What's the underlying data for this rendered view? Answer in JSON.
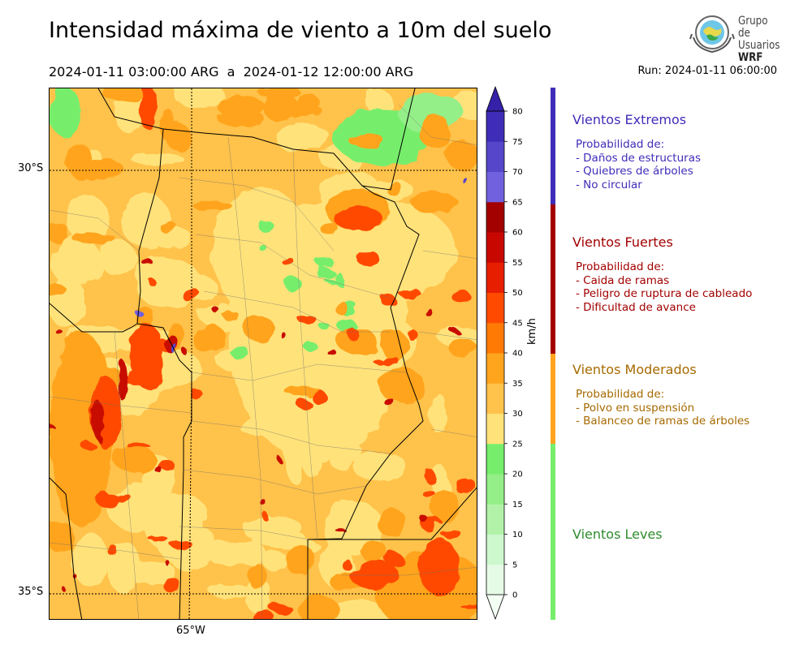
{
  "title": "Intensidad máxima de viento a 10m del suelo",
  "period": "2024-01-11 03:00:00 ARG  a  2024-01-12 12:00:00 ARG",
  "run": "Run: 2024-01-11 06:00:00",
  "logo": {
    "line1": "Grupo de",
    "line2": "Usuarios",
    "line3": "WRF"
  },
  "axes": {
    "lat_labels": [
      "30°S",
      "35°S"
    ],
    "lon_labels": [
      "65°W"
    ]
  },
  "colorbar": {
    "unit": "km/h",
    "ticks": [
      "0",
      "5",
      "10",
      "15",
      "20",
      "25",
      "30",
      "35",
      "40",
      "45",
      "50",
      "55",
      "60",
      "65",
      "70",
      "75",
      "80"
    ],
    "colors": [
      "#e6fbe6",
      "#cdf7cd",
      "#b1f2a8",
      "#94ef88",
      "#76ee6c",
      "#ffe27a",
      "#ffc24a",
      "#ffa41d",
      "#ff7a05",
      "#ff4a00",
      "#e81e00",
      "#c80800",
      "#a30000",
      "#7161de",
      "#5646ca",
      "#3f2db8",
      "#3521a8"
    ]
  },
  "categories": [
    {
      "name": "Vientos Extremos",
      "color": "#3f2db8",
      "bar_color": "#3f2db8",
      "lines": [
        "Probabilidad de:",
        "- Daños de estructuras",
        "- Quiebres de árboles",
        "- No circular"
      ]
    },
    {
      "name": "Vientos Fuertes",
      "color": "#a30000",
      "bar_color": "#a30000",
      "lines": [
        "Probabilidad de:",
        "- Caida de ramas",
        "- Peligro de ruptura de cableado",
        "- Dificultad de avance"
      ]
    },
    {
      "name": "Vientos Moderados",
      "color": "#a66a00",
      "bar_color": "#ffa41d",
      "lines": [
        "Probabilidad de:",
        "- Polvo en suspensión",
        "- Balanceo de ramas de árboles"
      ]
    },
    {
      "name": "Vientos Leves",
      "color": "#2e8b2e",
      "bar_color": "#76ee6c",
      "lines": []
    }
  ]
}
